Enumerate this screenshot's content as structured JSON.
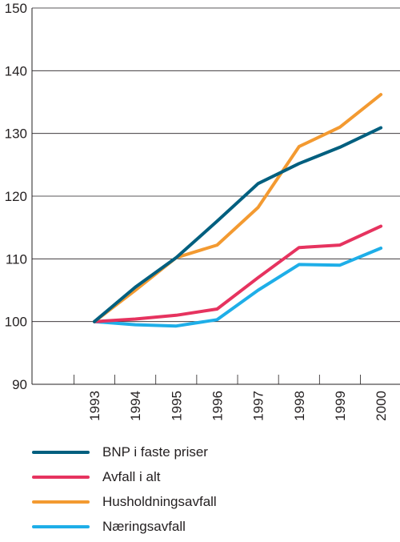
{
  "chart_data": {
    "type": "line",
    "title": "",
    "xlabel": "",
    "ylabel": "",
    "categories": [
      "1993",
      "1994",
      "1995",
      "1996",
      "1997",
      "1998",
      "1999",
      "2000"
    ],
    "ylim": [
      90,
      150
    ],
    "yticks": [
      90,
      100,
      110,
      120,
      130,
      140,
      150
    ],
    "grid": "horizontal",
    "legend_position": "bottom",
    "series": [
      {
        "name": "BNP i faste priser",
        "color": "#005f7f",
        "values": [
          100,
          105.5,
          110.2,
          116.0,
          122.0,
          125.2,
          127.8,
          130.9
        ]
      },
      {
        "name": "Avfall i alt",
        "color": "#e6335f",
        "values": [
          100,
          100.4,
          101.0,
          102.0,
          107.0,
          111.8,
          112.2,
          115.2
        ]
      },
      {
        "name": "Husholdningsavfall",
        "color": "#f39a31",
        "values": [
          100,
          105.0,
          110.2,
          112.2,
          118.2,
          127.9,
          131.0,
          136.2
        ]
      },
      {
        "name": "Næringsavfall",
        "color": "#1eaee8",
        "values": [
          100,
          99.5,
          99.3,
          100.3,
          105.0,
          109.1,
          109.0,
          111.7
        ]
      }
    ]
  }
}
